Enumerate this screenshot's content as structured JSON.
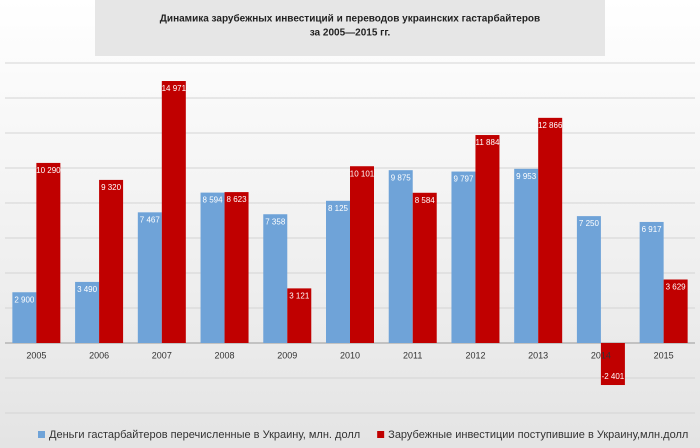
{
  "chart_data": {
    "type": "bar",
    "title": [
      "Динамика зарубежных инвестиций и переводов украинских гастарбайтеров",
      "за 2005—2015 гг."
    ],
    "categories": [
      "2005",
      "2006",
      "2007",
      "2008",
      "2009",
      "2010",
      "2011",
      "2012",
      "2013",
      "2014",
      "2015"
    ],
    "series": [
      {
        "name": "Деньги гастарбайтеров перечисленные в Украину, млн. долл",
        "color": "#6fa3d8",
        "values": [
          2900,
          3490,
          7467,
          8594,
          7358,
          8125,
          9875,
          9797,
          9953,
          7250,
          6917
        ],
        "value_labels": [
          "2 900",
          "3 490",
          "7 467",
          "8 594",
          "7 358",
          "8 125",
          "9 875",
          "9 797",
          "9 953",
          "7 250",
          "6 917"
        ]
      },
      {
        "name": "Зарубежные инвестиции поступившие в Украину,млн.долл",
        "color": "#c00000",
        "values": [
          10290,
          9320,
          14971,
          8623,
          3121,
          10101,
          8584,
          11884,
          12866,
          -2401,
          3629
        ],
        "value_labels": [
          "10 290",
          "9 320",
          "14 971",
          "8 623",
          "3 121",
          "10 101",
          "8 584",
          "11 884",
          "12 866",
          "-2 401",
          "3 629"
        ]
      }
    ],
    "ylim": [
      -4000,
      16000
    ],
    "yticks": [
      -4000,
      -2000,
      0,
      2000,
      4000,
      6000,
      8000,
      10000,
      12000,
      14000,
      16000
    ],
    "grid": true
  }
}
